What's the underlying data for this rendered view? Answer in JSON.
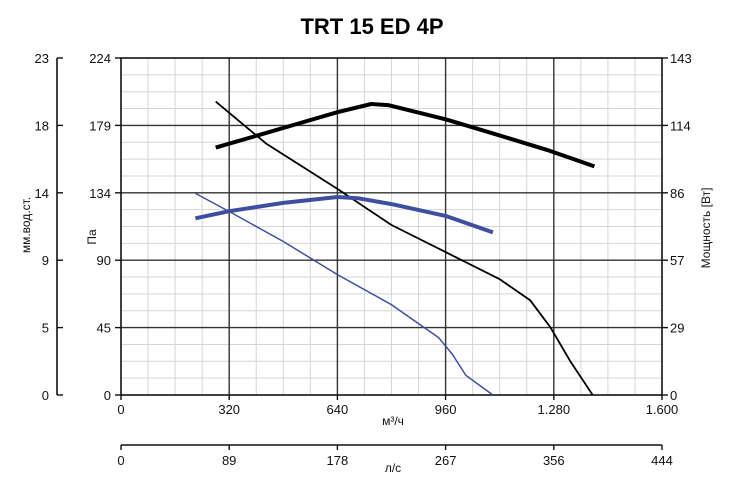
{
  "chart_data": {
    "type": "line",
    "title": "TRT 15 ED 4P",
    "x_axis": {
      "label": "м³/ч",
      "range": [
        0,
        1600
      ],
      "ticks": [
        "0",
        "320",
        "640",
        "960",
        "1.280",
        "1.600"
      ]
    },
    "x2_axis": {
      "label": "л/с",
      "ticks": [
        "0",
        "89",
        "178",
        "267",
        "356",
        "444"
      ]
    },
    "y_left_inner": {
      "label": "Па",
      "range": [
        0,
        224
      ],
      "ticks": [
        "0",
        "45",
        "90",
        "134",
        "179",
        "224"
      ]
    },
    "y_left_outer": {
      "label": "мм.вод.ст.",
      "ticks": [
        "0",
        "5",
        "9",
        "14",
        "18",
        "23"
      ]
    },
    "y_right": {
      "label": "Мощность [Вт]",
      "range": [
        0,
        143
      ],
      "ticks": [
        "0",
        "29",
        "57",
        "86",
        "114",
        "143"
      ]
    },
    "grid": true,
    "series": [
      {
        "kind": "pressure",
        "axis": "left",
        "color": "#000000",
        "width": 1.8,
        "points": [
          [
            280,
            195
          ],
          [
            430,
            167
          ],
          [
            640,
            137
          ],
          [
            800,
            113
          ],
          [
            960,
            95
          ],
          [
            1120,
            77
          ],
          [
            1210,
            63
          ],
          [
            1270,
            45
          ],
          [
            1330,
            22
          ],
          [
            1395,
            0
          ]
        ]
      },
      {
        "kind": "power",
        "axis": "right",
        "color": "#000000",
        "width": 4,
        "points": [
          [
            280,
            105
          ],
          [
            400,
            110
          ],
          [
            520,
            115
          ],
          [
            640,
            120
          ],
          [
            740,
            123.5
          ],
          [
            790,
            123
          ],
          [
            960,
            117
          ],
          [
            1100,
            111
          ],
          [
            1260,
            104
          ],
          [
            1400,
            97
          ]
        ]
      },
      {
        "kind": "pressure",
        "axis": "left",
        "color": "#4050a0",
        "width": 1.5,
        "points": [
          [
            220,
            134
          ],
          [
            320,
            122
          ],
          [
            480,
            102
          ],
          [
            640,
            80
          ],
          [
            800,
            60
          ],
          [
            940,
            38
          ],
          [
            980,
            27
          ],
          [
            1020,
            13
          ],
          [
            1100,
            0
          ]
        ]
      },
      {
        "kind": "power",
        "axis": "right",
        "color": "#3f4fa0",
        "width": 4,
        "points": [
          [
            220,
            75
          ],
          [
            320,
            78
          ],
          [
            480,
            81.5
          ],
          [
            640,
            84
          ],
          [
            700,
            83.5
          ],
          [
            800,
            81
          ],
          [
            960,
            76
          ],
          [
            1100,
            69
          ]
        ]
      }
    ]
  }
}
